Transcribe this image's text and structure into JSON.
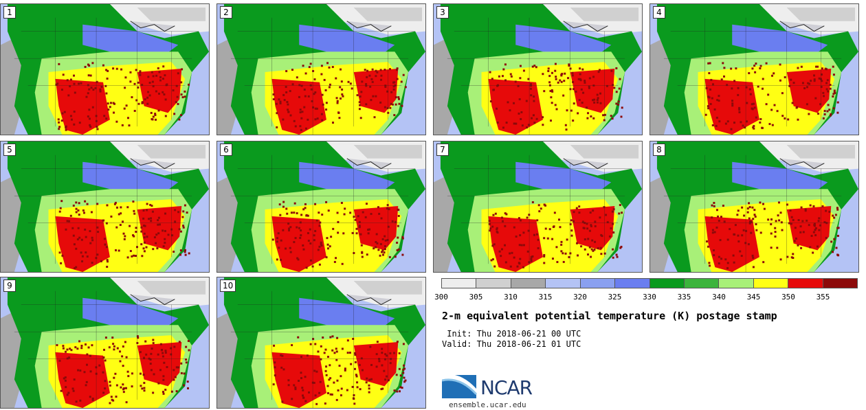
{
  "panels": [
    {
      "label": "1"
    },
    {
      "label": "2"
    },
    {
      "label": "3"
    },
    {
      "label": "4"
    },
    {
      "label": "5"
    },
    {
      "label": "6"
    },
    {
      "label": "7"
    },
    {
      "label": "8"
    },
    {
      "label": "9"
    },
    {
      "label": "10"
    }
  ],
  "colorbar": {
    "colors": [
      "#eeeeee",
      "#d0d0d0",
      "#a8a8a8",
      "#b4c3f5",
      "#8aa0f0",
      "#6a7ef0",
      "#0a9a1e",
      "#3cb43c",
      "#a8f078",
      "#ffff14",
      "#e60a0a",
      "#8c0a0a"
    ],
    "ticks": [
      "300",
      "305",
      "310",
      "315",
      "320",
      "325",
      "330",
      "335",
      "340",
      "345",
      "350",
      "355"
    ]
  },
  "title": "2-m equivalent potential temperature (K) postage stamp",
  "init_line": " Init: Thu 2018-06-21 00 UTC",
  "valid_line": "Valid: Thu 2018-06-21 01 UTC",
  "logo": {
    "name": "NCAR",
    "url": "ensemble.ucar.edu"
  }
}
